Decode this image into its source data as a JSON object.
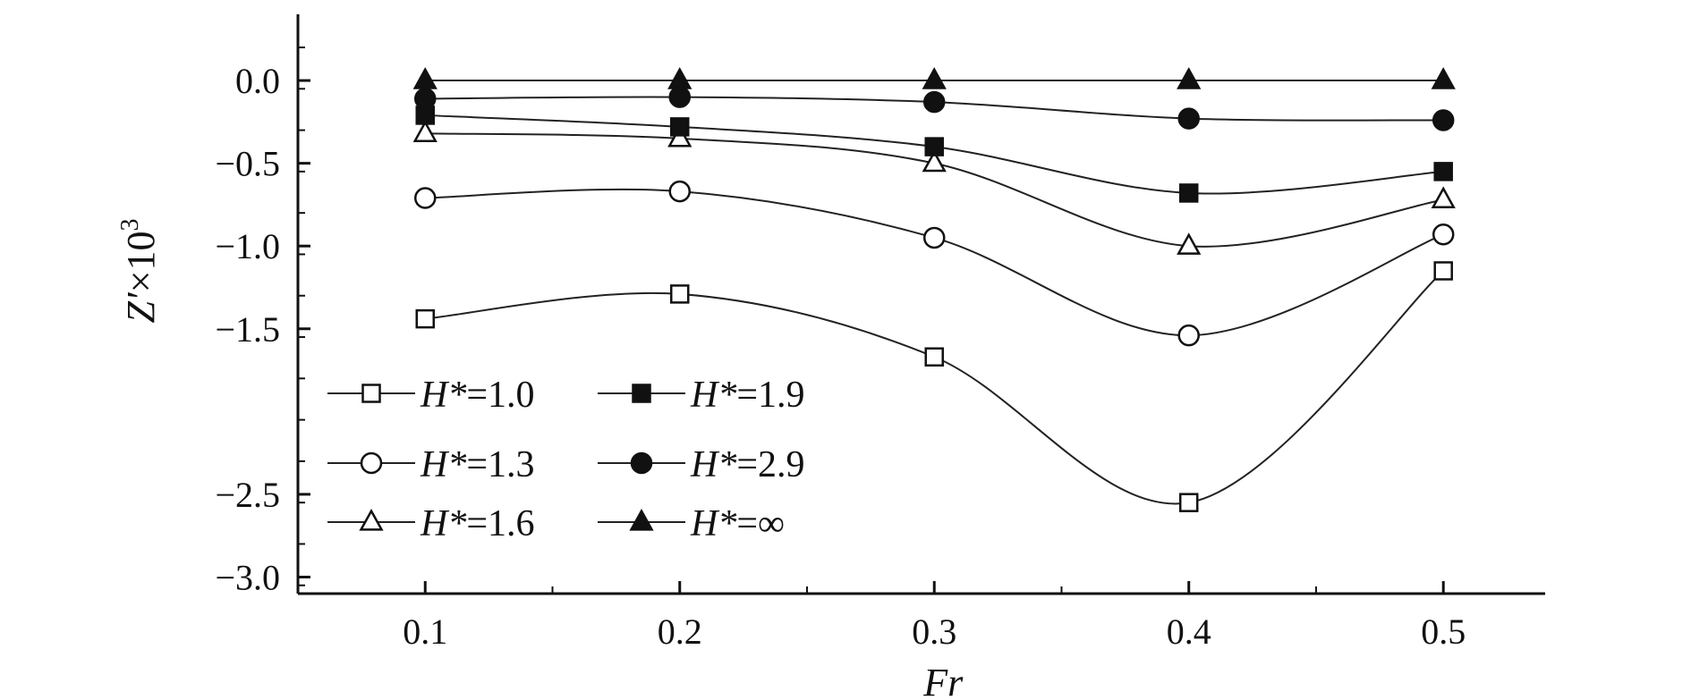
{
  "chart_data": {
    "type": "line",
    "title": "",
    "xlabel": "Fr",
    "ylabel": "Z′×10³",
    "ylabel_parts": {
      "base": "Z′",
      "mult": "×10",
      "exp": "3"
    },
    "x": [
      0.1,
      0.2,
      0.3,
      0.4,
      0.5
    ],
    "xlim": [
      0.05,
      0.54
    ],
    "ylim": [
      -3.1,
      0.4
    ],
    "xticks": [
      0.1,
      0.2,
      0.3,
      0.4,
      0.5
    ],
    "xtick_labels": [
      "0.1",
      "0.2",
      "0.3",
      "0.4",
      "0.5"
    ],
    "yticks": [
      0.0,
      -0.5,
      -1.0,
      -1.5,
      -2.5,
      -3.0
    ],
    "ytick_labels": [
      "0.0",
      "−0.5",
      "−1.0",
      "−1.5",
      "−2.5",
      "−3.0"
    ],
    "grid": false,
    "legend_position": "bottom-left",
    "series": [
      {
        "name": "H*=1.0",
        "label_var": "H*",
        "label_val": "=1.0",
        "marker": "square",
        "filled": false,
        "values": [
          -1.44,
          -1.29,
          -1.67,
          -2.55,
          -1.15
        ]
      },
      {
        "name": "H*=1.3",
        "label_var": "H*",
        "label_val": "=1.3",
        "marker": "circle",
        "filled": false,
        "values": [
          -0.71,
          -0.67,
          -0.95,
          -1.54,
          -0.93
        ]
      },
      {
        "name": "H*=1.6",
        "label_var": "H*",
        "label_val": "=1.6",
        "marker": "triangle",
        "filled": false,
        "values": [
          -0.32,
          -0.35,
          -0.5,
          -1.0,
          -0.72
        ]
      },
      {
        "name": "H*=1.9",
        "label_var": "H*",
        "label_val": "=1.9",
        "marker": "square",
        "filled": true,
        "values": [
          -0.21,
          -0.28,
          -0.4,
          -0.68,
          -0.55
        ]
      },
      {
        "name": "H*=2.9",
        "label_var": "H*",
        "label_val": "=2.9",
        "marker": "circle",
        "filled": true,
        "values": [
          -0.11,
          -0.1,
          -0.13,
          -0.23,
          -0.24
        ]
      },
      {
        "name": "H*=∞",
        "label_var": "H*",
        "label_val": "=∞",
        "marker": "triangle",
        "filled": true,
        "values": [
          0.0,
          0.0,
          0.0,
          0.0,
          0.0
        ]
      }
    ]
  }
}
